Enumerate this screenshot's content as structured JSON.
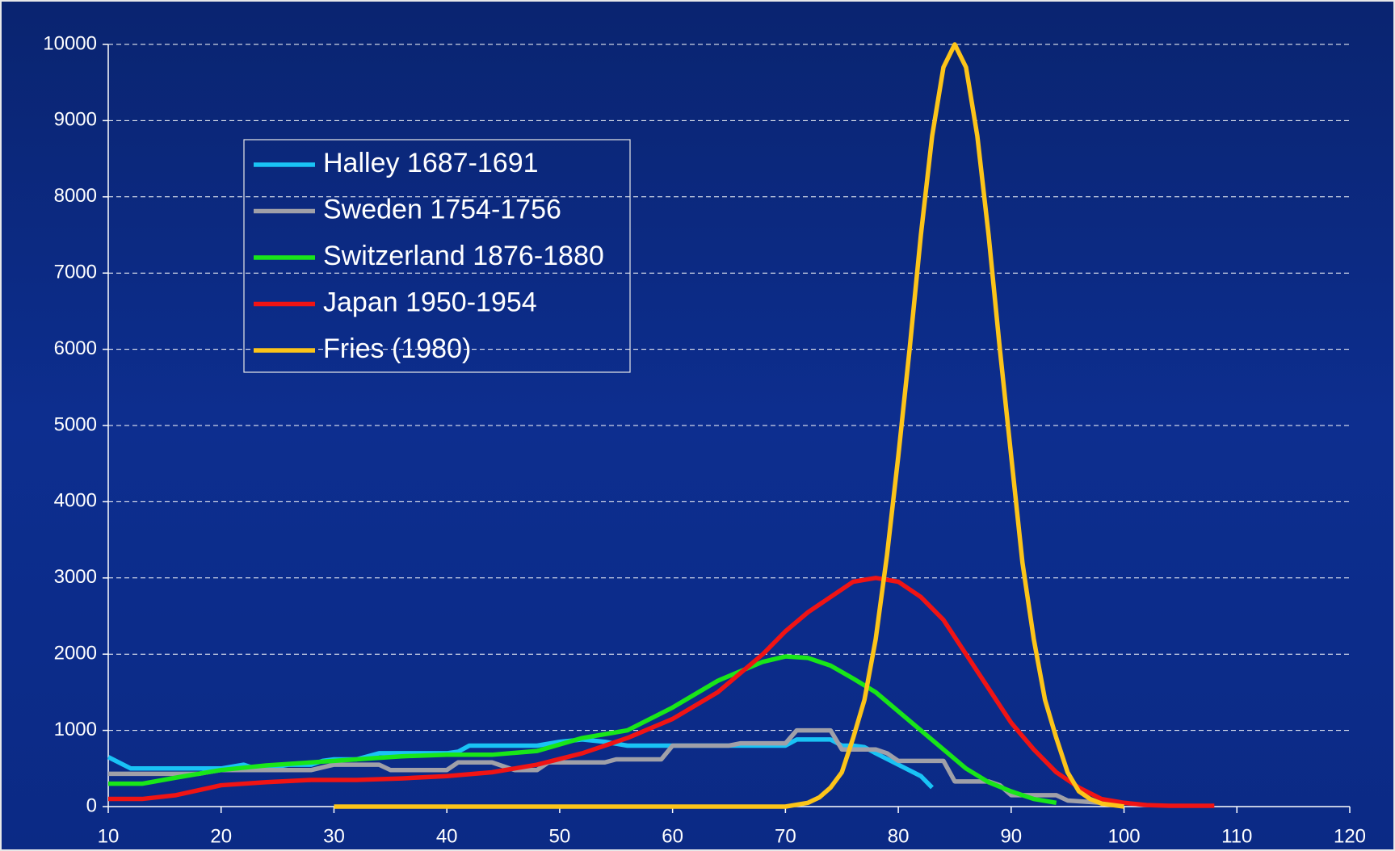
{
  "chart_data": {
    "type": "line",
    "xlim": [
      10,
      120
    ],
    "xticks": [
      10,
      20,
      30,
      40,
      50,
      60,
      70,
      80,
      90,
      100,
      110,
      120
    ],
    "ylim": [
      0,
      10000
    ],
    "yticks": [
      0,
      1000,
      2000,
      3000,
      4000,
      5000,
      6000,
      7000,
      8000,
      9000,
      10000
    ],
    "grid": true,
    "legend": "upper left",
    "series": [
      {
        "name": "Halley 1687-1691",
        "color": "#19c3f5",
        "x": [
          10,
          12,
          14,
          16,
          18,
          20,
          22,
          23,
          24,
          26,
          28,
          29,
          30,
          32,
          34,
          36,
          38,
          40,
          41,
          42,
          44,
          46,
          48,
          50,
          52,
          54,
          56,
          58,
          60,
          62,
          64,
          66,
          68,
          70,
          71,
          72,
          74,
          75,
          76,
          77,
          78,
          80,
          82,
          83
        ],
        "values": [
          650,
          500,
          500,
          500,
          500,
          500,
          550,
          500,
          500,
          550,
          550,
          600,
          620,
          620,
          700,
          700,
          700,
          700,
          720,
          800,
          800,
          800,
          800,
          850,
          880,
          850,
          800,
          800,
          800,
          800,
          800,
          800,
          800,
          800,
          880,
          880,
          880,
          800,
          800,
          780,
          700,
          550,
          400,
          250
        ]
      },
      {
        "name": "Sweden 1754-1756",
        "color": "#a0a0a8",
        "x": [
          10,
          14,
          18,
          20,
          22,
          28,
          30,
          34,
          35,
          40,
          41,
          44,
          46,
          48,
          49,
          54,
          55,
          59,
          60,
          65,
          66,
          70,
          71,
          74,
          75,
          78,
          79,
          80,
          84,
          85,
          88,
          89,
          90,
          94,
          95,
          98
        ],
        "values": [
          430,
          430,
          430,
          480,
          480,
          480,
          550,
          550,
          480,
          480,
          580,
          580,
          480,
          480,
          580,
          580,
          620,
          620,
          800,
          800,
          830,
          830,
          1000,
          1000,
          750,
          750,
          700,
          600,
          600,
          330,
          330,
          280,
          150,
          150,
          80,
          50
        ]
      },
      {
        "name": "Switzerland 1876-1880",
        "color": "#19e619",
        "x": [
          10,
          13,
          16,
          20,
          24,
          28,
          32,
          36,
          40,
          44,
          48,
          52,
          56,
          60,
          64,
          68,
          70,
          72,
          74,
          76,
          78,
          80,
          82,
          84,
          86,
          88,
          90,
          92,
          94
        ],
        "values": [
          300,
          300,
          380,
          480,
          540,
          580,
          620,
          660,
          680,
          680,
          730,
          900,
          1000,
          1300,
          1650,
          1900,
          1970,
          1950,
          1850,
          1680,
          1500,
          1250,
          1000,
          750,
          500,
          320,
          200,
          100,
          50
        ]
      },
      {
        "name": "Japan 1950-1954",
        "color": "#f01414",
        "x": [
          10,
          13,
          16,
          20,
          24,
          28,
          32,
          36,
          40,
          44,
          48,
          52,
          56,
          60,
          64,
          68,
          70,
          72,
          74,
          76,
          78,
          80,
          82,
          84,
          86,
          88,
          90,
          92,
          94,
          96,
          98,
          100,
          102,
          104,
          108
        ],
        "values": [
          100,
          100,
          150,
          280,
          320,
          350,
          350,
          370,
          400,
          450,
          550,
          700,
          900,
          1150,
          1500,
          2000,
          2300,
          2550,
          2750,
          2950,
          3000,
          2950,
          2750,
          2450,
          2000,
          1550,
          1100,
          750,
          450,
          250,
          100,
          50,
          20,
          10,
          10
        ]
      },
      {
        "name": "Fries (1980)",
        "color": "#fcc419",
        "x": [
          30,
          70,
          72,
          73,
          74,
          75,
          76,
          77,
          78,
          79,
          80,
          81,
          82,
          83,
          84,
          85,
          86,
          87,
          88,
          89,
          90,
          91,
          92,
          93,
          94,
          95,
          96,
          97,
          98,
          100
        ],
        "values": [
          0,
          0,
          50,
          120,
          250,
          450,
          900,
          1400,
          2200,
          3300,
          4600,
          6000,
          7500,
          8800,
          9700,
          10000,
          9700,
          8800,
          7500,
          6000,
          4600,
          3200,
          2200,
          1400,
          900,
          450,
          200,
          100,
          40,
          0
        ]
      }
    ]
  }
}
